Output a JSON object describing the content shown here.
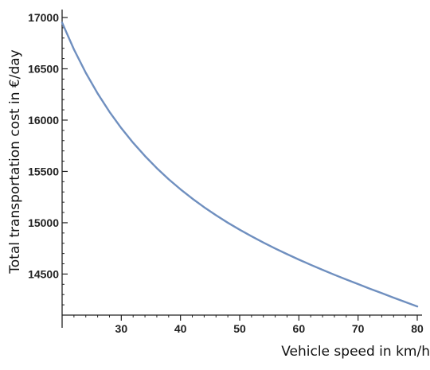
{
  "chart_data": {
    "type": "line",
    "title": "",
    "xlabel": "Vehicle speed in km/h",
    "ylabel": "Total transportation cost in €/day",
    "xlim": [
      20,
      80
    ],
    "ylim": [
      14100,
      17000
    ],
    "x_ticks": [
      30,
      40,
      50,
      60,
      70,
      80
    ],
    "y_ticks": [
      14500,
      15000,
      15500,
      16000,
      16500,
      17000
    ],
    "x_minor_step": 2,
    "y_minor_step": 100,
    "grid": false,
    "colors": {
      "line": "#6f8fbf",
      "axis": "#222222"
    },
    "series": [
      {
        "x": [
          20,
          22,
          24,
          26,
          28,
          30,
          32,
          34,
          36,
          38,
          40,
          42,
          44,
          46,
          48,
          50,
          52,
          54,
          56,
          58,
          60,
          62,
          64,
          66,
          68,
          70,
          72,
          74,
          76,
          78,
          80
        ],
        "values": [
          16950,
          16689,
          16461,
          16260,
          16081,
          15922,
          15779,
          15650,
          15532,
          15424,
          15326,
          15235,
          15151,
          15073,
          15000,
          14932,
          14868,
          14807,
          14749,
          14694,
          14641,
          14590,
          14541,
          14493,
          14447,
          14402,
          14357,
          14314,
          14270,
          14227,
          14184
        ]
      }
    ]
  }
}
